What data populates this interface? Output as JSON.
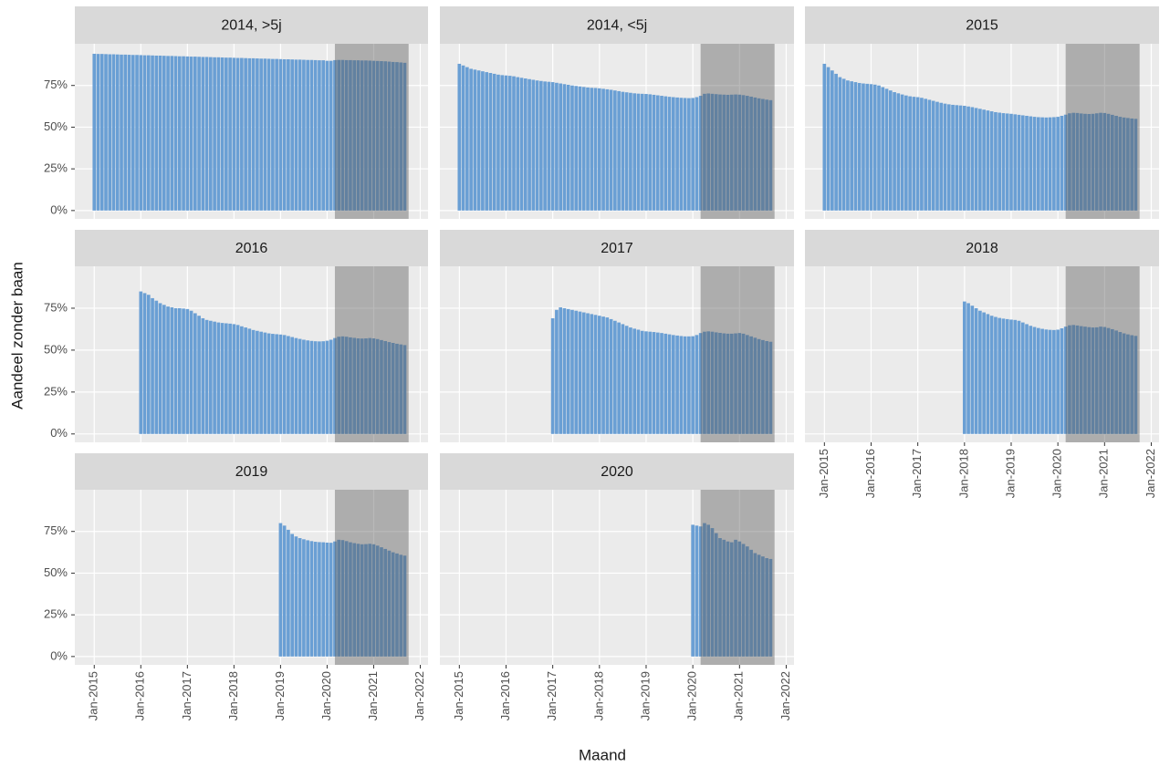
{
  "chart_data": {
    "type": "bar",
    "x_label": "Maand",
    "y_label": "Aandeel zonder baan",
    "color": "#6a9fd4",
    "grid": true,
    "x": [
      "2015-01",
      "2015-02",
      "2015-03",
      "2015-04",
      "2015-05",
      "2015-06",
      "2015-07",
      "2015-08",
      "2015-09",
      "2015-10",
      "2015-11",
      "2015-12",
      "2016-01",
      "2016-02",
      "2016-03",
      "2016-04",
      "2016-05",
      "2016-06",
      "2016-07",
      "2016-08",
      "2016-09",
      "2016-10",
      "2016-11",
      "2016-12",
      "2017-01",
      "2017-02",
      "2017-03",
      "2017-04",
      "2017-05",
      "2017-06",
      "2017-07",
      "2017-08",
      "2017-09",
      "2017-10",
      "2017-11",
      "2017-12",
      "2018-01",
      "2018-02",
      "2018-03",
      "2018-04",
      "2018-05",
      "2018-06",
      "2018-07",
      "2018-08",
      "2018-09",
      "2018-10",
      "2018-11",
      "2018-12",
      "2019-01",
      "2019-02",
      "2019-03",
      "2019-04",
      "2019-05",
      "2019-06",
      "2019-07",
      "2019-08",
      "2019-09",
      "2019-10",
      "2019-11",
      "2019-12",
      "2020-01",
      "2020-02",
      "2020-03",
      "2020-04",
      "2020-05",
      "2020-06",
      "2020-07",
      "2020-08",
      "2020-09",
      "2020-10",
      "2020-11",
      "2020-12",
      "2021-01",
      "2021-02",
      "2021-03",
      "2021-04",
      "2021-05",
      "2021-06",
      "2021-07",
      "2021-08",
      "2021-09"
    ],
    "xlim": [
      "2014-08",
      "2022-03"
    ],
    "xticks": [
      {
        "value": "2015-01",
        "label": "Jan-2015"
      },
      {
        "value": "2016-01",
        "label": "Jan-2016"
      },
      {
        "value": "2017-01",
        "label": "Jan-2017"
      },
      {
        "value": "2018-01",
        "label": "Jan-2018"
      },
      {
        "value": "2019-01",
        "label": "Jan-2019"
      },
      {
        "value": "2020-01",
        "label": "Jan-2020"
      },
      {
        "value": "2021-01",
        "label": "Jan-2021"
      },
      {
        "value": "2022-01",
        "label": "Jan-2022"
      }
    ],
    "ylim": [
      -5,
      100
    ],
    "yticks": [
      {
        "value": 0,
        "label": "0%"
      },
      {
        "value": 25,
        "label": "25%"
      },
      {
        "value": 50,
        "label": "50%"
      },
      {
        "value": 75,
        "label": "75%"
      }
    ],
    "shade": {
      "x": [
        "2020-03",
        "2021-10"
      ],
      "color": "#595959",
      "opacity": 0.42
    },
    "series": [
      {
        "name": "2014, >5j",
        "values": [
          94.0,
          93.9,
          93.9,
          93.8,
          93.7,
          93.7,
          93.6,
          93.5,
          93.5,
          93.4,
          93.3,
          93.3,
          93.2,
          93.1,
          93.1,
          93.0,
          92.9,
          92.9,
          92.8,
          92.7,
          92.7,
          92.6,
          92.5,
          92.5,
          92.4,
          92.3,
          92.3,
          92.2,
          92.1,
          92.1,
          92.0,
          91.9,
          91.9,
          91.8,
          91.7,
          91.7,
          91.6,
          91.5,
          91.5,
          91.4,
          91.3,
          91.3,
          91.2,
          91.1,
          91.1,
          91.0,
          90.9,
          90.9,
          90.8,
          90.7,
          90.7,
          90.6,
          90.5,
          90.5,
          90.4,
          90.3,
          90.3,
          90.2,
          90.1,
          90.1,
          89.8,
          89.8,
          90.2,
          90.3,
          90.3,
          90.2,
          90.2,
          90.1,
          90.1,
          90.0,
          90.0,
          89.9,
          89.8,
          89.7,
          89.6,
          89.5,
          89.3,
          89.1,
          89.0,
          88.8,
          88.6
        ]
      },
      {
        "name": "2014, <5j",
        "values": [
          88,
          87,
          86,
          85,
          84.5,
          84,
          83.5,
          83,
          82.5,
          82,
          81.5,
          81.2,
          81,
          80.8,
          80.5,
          80,
          79.6,
          79.2,
          78.8,
          78.4,
          78,
          77.7,
          77.4,
          77.2,
          77,
          76.6,
          76.2,
          75.8,
          75.4,
          75,
          74.7,
          74.4,
          74.1,
          73.8,
          73.6,
          73.5,
          73.3,
          73,
          72.7,
          72.4,
          72,
          71.6,
          71.2,
          70.9,
          70.6,
          70.3,
          70.1,
          70,
          69.9,
          69.7,
          69.4,
          69.1,
          68.8,
          68.5,
          68.2,
          68,
          67.8,
          67.6,
          67.5,
          67.4,
          67.5,
          68,
          68.8,
          70,
          70.2,
          70,
          69.8,
          69.6,
          69.5,
          69.4,
          69.5,
          69.6,
          69.5,
          69.2,
          68.8,
          68.3,
          67.8,
          67.3,
          66.9,
          66.5,
          66.2
        ]
      },
      {
        "name": "2015",
        "values": [
          88,
          86,
          84,
          82,
          80,
          79,
          78,
          77.5,
          77,
          76.5,
          76.2,
          76,
          75.8,
          75.5,
          75,
          74,
          73,
          72,
          71,
          70.3,
          69.6,
          69,
          68.5,
          68.2,
          68,
          67.6,
          67,
          66.4,
          65.8,
          65.2,
          64.6,
          64.1,
          63.7,
          63.4,
          63.2,
          63,
          62.8,
          62.4,
          62,
          61.5,
          61,
          60.5,
          60,
          59.5,
          59,
          58.7,
          58.4,
          58.2,
          58,
          57.7,
          57.4,
          57.1,
          56.8,
          56.5,
          56.2,
          56,
          55.9,
          55.8,
          55.9,
          56,
          56.2,
          56.8,
          57.5,
          58.3,
          58.6,
          58.5,
          58.2,
          58,
          57.9,
          58,
          58.3,
          58.6,
          58.5,
          58,
          57.4,
          56.8,
          56.2,
          55.8,
          55.5,
          55.2,
          55
        ]
      },
      {
        "name": "2016",
        "values": [
          null,
          null,
          null,
          null,
          null,
          null,
          null,
          null,
          null,
          null,
          null,
          null,
          85,
          84,
          83,
          81,
          79.5,
          78,
          77,
          76,
          75.5,
          75,
          75,
          74.8,
          74.5,
          73.5,
          72,
          70.5,
          69,
          68,
          67.5,
          67,
          66.5,
          66.2,
          66,
          65.8,
          65.5,
          65,
          64.2,
          63.5,
          62.8,
          62,
          61.5,
          61,
          60.5,
          60,
          59.7,
          59.5,
          59.3,
          59,
          58.4,
          57.8,
          57.2,
          56.7,
          56.2,
          55.8,
          55.5,
          55.3,
          55.2,
          55.3,
          55.6,
          56.2,
          57.2,
          58,
          58.2,
          58,
          57.6,
          57.3,
          57,
          56.9,
          57,
          57.2,
          57,
          56.6,
          56,
          55.4,
          54.8,
          54.3,
          53.8,
          53.4,
          53
        ]
      },
      {
        "name": "2017",
        "values": [
          null,
          null,
          null,
          null,
          null,
          null,
          null,
          null,
          null,
          null,
          null,
          null,
          null,
          null,
          null,
          null,
          null,
          null,
          null,
          null,
          null,
          null,
          null,
          null,
          69,
          74,
          75.5,
          75,
          74.5,
          74,
          73.5,
          73,
          72.5,
          72,
          71.5,
          71,
          70.5,
          70,
          69.5,
          68.5,
          67.5,
          66.5,
          65.5,
          64.5,
          63.5,
          62.8,
          62.2,
          61.5,
          61.2,
          61,
          60.8,
          60.5,
          60.2,
          59.8,
          59.4,
          59,
          58.7,
          58.4,
          58.2,
          58.2,
          58.3,
          59,
          60.2,
          61,
          61.2,
          61,
          60.6,
          60.3,
          60,
          59.8,
          59.8,
          60,
          60.2,
          59.8,
          59,
          58.2,
          57.4,
          56.6,
          56,
          55.4,
          55
        ]
      },
      {
        "name": "2018",
        "values": [
          null,
          null,
          null,
          null,
          null,
          null,
          null,
          null,
          null,
          null,
          null,
          null,
          null,
          null,
          null,
          null,
          null,
          null,
          null,
          null,
          null,
          null,
          null,
          null,
          null,
          null,
          null,
          null,
          null,
          null,
          null,
          null,
          null,
          null,
          null,
          null,
          79,
          78,
          76.5,
          75,
          73.5,
          72.5,
          71.5,
          70.5,
          69.8,
          69.2,
          68.8,
          68.5,
          68.2,
          68,
          67.5,
          66.5,
          65.5,
          64.5,
          63.8,
          63.2,
          62.7,
          62.3,
          62.1,
          62,
          62.2,
          63,
          64,
          64.8,
          65,
          64.7,
          64.3,
          64,
          63.7,
          63.5,
          63.6,
          64,
          63.8,
          63.2,
          62.5,
          61.7,
          60.8,
          60,
          59.4,
          58.9,
          58.5
        ]
      },
      {
        "name": "2019",
        "values": [
          null,
          null,
          null,
          null,
          null,
          null,
          null,
          null,
          null,
          null,
          null,
          null,
          null,
          null,
          null,
          null,
          null,
          null,
          null,
          null,
          null,
          null,
          null,
          null,
          null,
          null,
          null,
          null,
          null,
          null,
          null,
          null,
          null,
          null,
          null,
          null,
          null,
          null,
          null,
          null,
          null,
          null,
          null,
          null,
          null,
          null,
          null,
          null,
          80,
          78.5,
          76,
          73.5,
          72,
          71,
          70.3,
          69.7,
          69.2,
          68.8,
          68.6,
          68.5,
          68.3,
          68.2,
          69,
          70,
          69.8,
          69.2,
          68.5,
          68,
          67.6,
          67.3,
          67.4,
          67.6,
          67.3,
          66.5,
          65.5,
          64.5,
          63.5,
          62.5,
          61.8,
          61,
          60.5
        ]
      },
      {
        "name": "2020",
        "values": [
          null,
          null,
          null,
          null,
          null,
          null,
          null,
          null,
          null,
          null,
          null,
          null,
          null,
          null,
          null,
          null,
          null,
          null,
          null,
          null,
          null,
          null,
          null,
          null,
          null,
          null,
          null,
          null,
          null,
          null,
          null,
          null,
          null,
          null,
          null,
          null,
          null,
          null,
          null,
          null,
          null,
          null,
          null,
          null,
          null,
          null,
          null,
          null,
          null,
          null,
          null,
          null,
          null,
          null,
          null,
          null,
          null,
          null,
          null,
          null,
          79,
          78.5,
          78,
          80,
          79,
          77,
          74,
          71,
          70,
          69,
          68.5,
          70,
          69,
          67.5,
          66,
          64,
          62,
          61,
          60,
          59,
          58.5
        ]
      }
    ]
  }
}
